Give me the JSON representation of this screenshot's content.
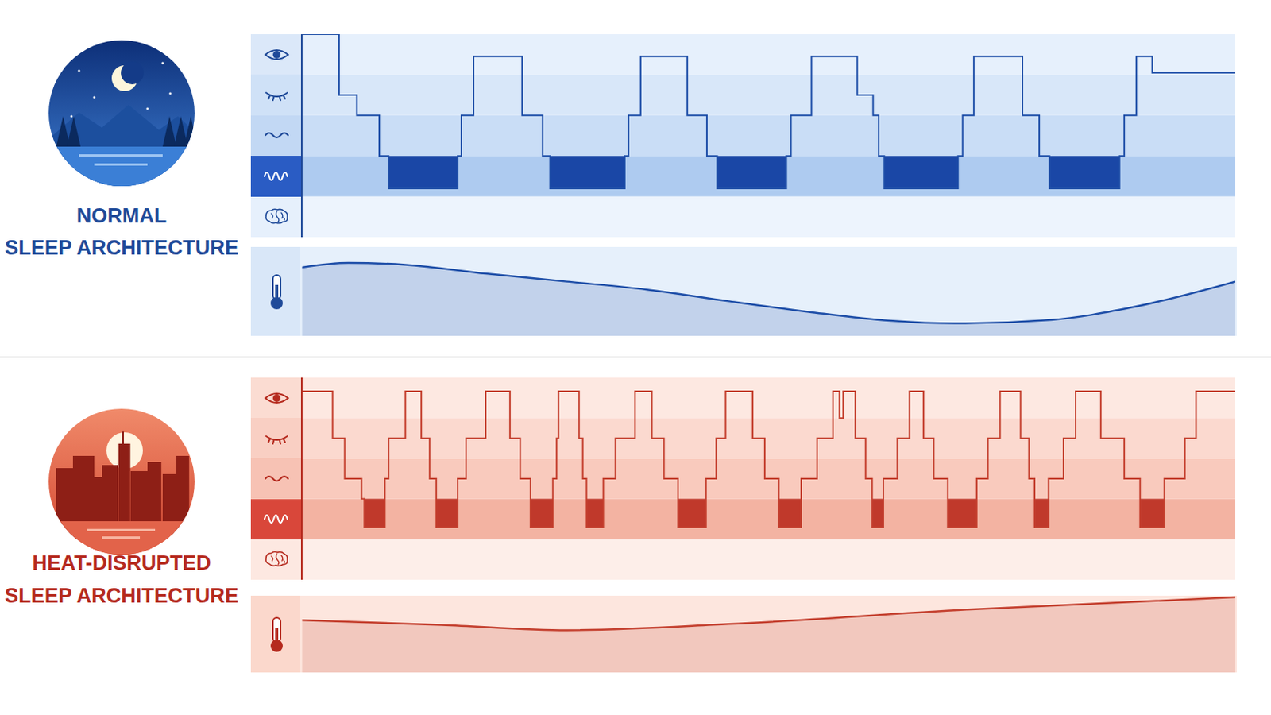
{
  "chart_data": [
    {
      "type": "line",
      "title": "NORMAL",
      "subtitle": "SLEEP ARCHITECTURE",
      "x": [
        0,
        4.0,
        5.9,
        8.3,
        9.3,
        16.7,
        17.1,
        18.4,
        23.6,
        25.8,
        26.6,
        34.6,
        35.0,
        36.3,
        41.3,
        43.4,
        44.5,
        51.9,
        52.4,
        54.6,
        59.5,
        61.2,
        61.8,
        62.4,
        70.3,
        70.8,
        72.0,
        77.2,
        79.0,
        80.1,
        87.6,
        88.1,
        89.4,
        91.1,
        100
      ],
      "series": [
        {
          "type": "line",
          "line_style": "step",
          "color": "#1f4fa8",
          "values": [
            5,
            3.5,
            3,
            2,
            1.2,
            2,
            3,
            4.45,
            3,
            2,
            1.2,
            2,
            3,
            4.45,
            3,
            2,
            1.2,
            2,
            3,
            4.45,
            3.5,
            3,
            2,
            1.2,
            2,
            3,
            4.45,
            3,
            2,
            1.2,
            2,
            3,
            4.45,
            4.05,
            4.05
          ]
        },
        {
          "type": "area",
          "line_style": "step",
          "color": "#1a47a6",
          "values": [
            null,
            null,
            null,
            null,
            1.2,
            1.2,
            null,
            null,
            null,
            null,
            1.2,
            1.2,
            null,
            null,
            null,
            null,
            1.2,
            1.2,
            null,
            null,
            null,
            null,
            null,
            1.2,
            1.2,
            null,
            null,
            null,
            null,
            1.2,
            1.2,
            null,
            null,
            null,
            null
          ]
        }
      ],
      "xlim": [
        0,
        100
      ],
      "ylim": [
        0,
        5
      ],
      "yticks": [
        0,
        1,
        2,
        3,
        4,
        5
      ],
      "tick_labels": false
    },
    {
      "type": "area",
      "x": [
        0,
        5,
        11.1,
        19.7,
        28.4,
        37,
        45.7,
        54.3,
        63,
        69.9,
        80.3,
        88.9,
        100
      ],
      "values": [
        7.7,
        8.2,
        8.0,
        7.0,
        6.1,
        5.2,
        3.9,
        2.7,
        1.7,
        1.4,
        1.8,
        3.2,
        6.1
      ],
      "color": "#1f4fa8",
      "xlim": [
        0,
        100
      ],
      "ylim": [
        0,
        10
      ],
      "yticks": [
        0,
        10
      ],
      "tick_labels": false
    },
    {
      "type": "line",
      "title": "HEAT-DISRUPTED",
      "subtitle": "SLEEP ARCHITECTURE",
      "x": [
        0,
        3.3,
        4.6,
        6.4,
        6.7,
        8.9,
        9.3,
        11.1,
        12.8,
        13.7,
        14.4,
        16.7,
        17.6,
        19.7,
        22.3,
        23.4,
        24.5,
        26.9,
        27.3,
        27.5,
        29.7,
        30.1,
        30.5,
        32.3,
        33.6,
        35.7,
        37.5,
        38.8,
        40.3,
        43.3,
        44.4,
        45.4,
        48.3,
        49.6,
        51.1,
        53.5,
        55.2,
        56.9,
        57.6,
        58.0,
        59.3,
        60.4,
        61.1,
        62.3,
        63.8,
        65.1,
        66.6,
        67.7,
        69.2,
        72.3,
        73.5,
        74.8,
        77.0,
        77.9,
        78.5,
        80.0,
        81.6,
        82.9,
        85.6,
        88.1,
        89.8,
        92.4,
        94.6,
        95.8,
        100
      ],
      "series": [
        {
          "type": "line",
          "line_style": "step",
          "color": "#c4402f",
          "values": [
            4.66,
            3.5,
            2.5,
            2.0,
            1.3,
            2.5,
            3.5,
            4.66,
            3.5,
            2.5,
            1.3,
            2.5,
            3.5,
            4.66,
            3.5,
            2.5,
            1.3,
            2.5,
            3.5,
            4.66,
            3.5,
            2.5,
            1.3,
            2.5,
            3.5,
            4.66,
            3.5,
            2.5,
            1.3,
            2.5,
            3.5,
            4.66,
            3.5,
            2.5,
            1.3,
            2.5,
            3.5,
            4.66,
            4.0,
            4.66,
            3.5,
            2.5,
            1.3,
            2.5,
            3.5,
            4.66,
            3.5,
            2.5,
            1.3,
            2.5,
            3.5,
            4.66,
            3.5,
            2.5,
            1.3,
            2.5,
            3.5,
            4.66,
            3.5,
            2.5,
            1.3,
            2.5,
            3.5,
            4.66,
            4.66
          ]
        },
        {
          "type": "area",
          "line_style": "step",
          "color": "#c0392b",
          "values": [
            null,
            null,
            null,
            null,
            1.3,
            1.3,
            null,
            null,
            null,
            null,
            1.3,
            1.3,
            null,
            null,
            null,
            null,
            1.3,
            1.3,
            null,
            null,
            null,
            null,
            1.3,
            1.3,
            null,
            null,
            null,
            null,
            1.3,
            1.3,
            null,
            null,
            null,
            null,
            1.3,
            1.3,
            null,
            null,
            null,
            null,
            null,
            null,
            1.3,
            1.3,
            null,
            null,
            null,
            null,
            1.3,
            1.3,
            null,
            null,
            null,
            null,
            1.3,
            1.3,
            null,
            null,
            null,
            null,
            1.3,
            1.3,
            null,
            null,
            null
          ]
        }
      ],
      "xlim": [
        0,
        100
      ],
      "ylim": [
        0,
        5
      ],
      "yticks": [
        0,
        1,
        2,
        3,
        4,
        5
      ],
      "tick_labels": false
    },
    {
      "type": "area",
      "x": [
        0,
        15,
        28.4,
        45.7,
        71.3,
        100
      ],
      "values": [
        6.8,
        6.2,
        5.5,
        6.3,
        8.2,
        9.8
      ],
      "color": "#c4402f",
      "xlim": [
        0,
        100
      ],
      "ylim": [
        0,
        10
      ],
      "yticks": [
        0,
        10
      ],
      "tick_labels": false
    }
  ]
}
